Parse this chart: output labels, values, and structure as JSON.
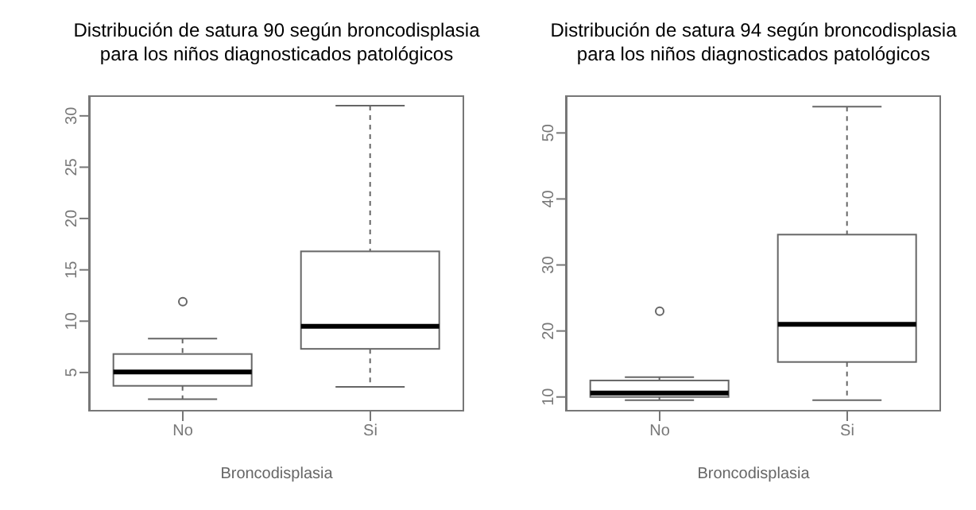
{
  "chart_data": [
    {
      "type": "box",
      "title": "Distribución de satura 90 según broncodisplasia\npara los niños diagnosticados patológicos",
      "xlabel": "Broncodisplasia",
      "categories": [
        "No",
        "Si"
      ],
      "boxes": [
        {
          "low": 2.4,
          "q1": 3.7,
          "median": 5.05,
          "q3": 6.8,
          "high": 8.3,
          "outliers": [
            11.9
          ]
        },
        {
          "low": 3.6,
          "q1": 7.3,
          "median": 9.5,
          "q3": 16.8,
          "high": 31
        }
      ],
      "ylim": [
        1.2,
        32
      ],
      "yticks": [
        5,
        10,
        15,
        20,
        25,
        30
      ]
    },
    {
      "type": "box",
      "title": "Distribución de satura 94 según broncodisplasia\npara los niños diagnosticados patológicos",
      "xlabel": "Broncodisplasia",
      "categories": [
        "No",
        "Si"
      ],
      "boxes": [
        {
          "low": 9.5,
          "q1": 10,
          "median": 10.6,
          "q3": 12.5,
          "high": 13,
          "outliers": [
            23
          ]
        },
        {
          "low": 9.5,
          "q1": 15.3,
          "median": 21,
          "q3": 34.6,
          "high": 54
        }
      ],
      "ylim": [
        7.8,
        55.7
      ],
      "yticks": [
        10,
        20,
        30,
        40,
        50
      ]
    }
  ]
}
